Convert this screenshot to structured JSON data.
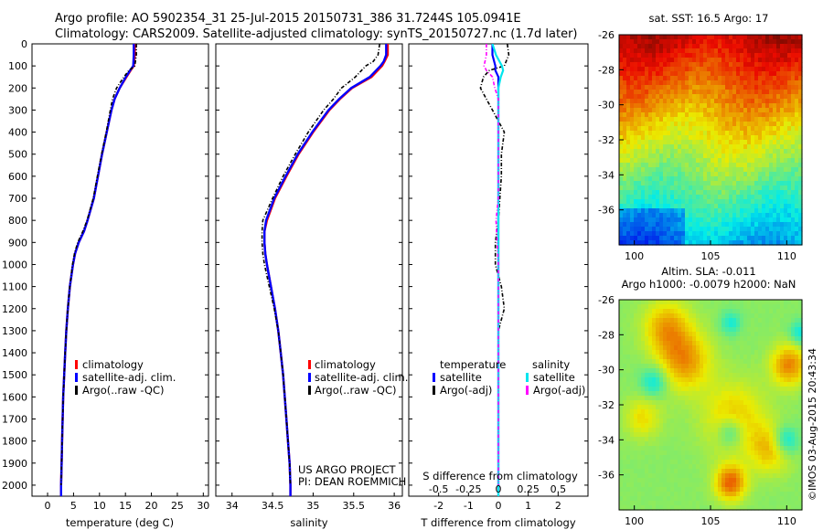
{
  "header": {
    "line1": "Argo profile: AO 5902354_31 25-Jul-2015 20150731_386 31.7244S 105.0941E",
    "line2": "Climatology: CARS2009. Satellite-adjusted climatology: synTS_20150727.nc (1.7d later)"
  },
  "colors": {
    "climatology": "#ff0000",
    "satellite_adj": "#0000ff",
    "argo_raw": "#000000",
    "salinity_satellite": "#00e5ee",
    "salinity_argo": "#ff00ff"
  },
  "chart_data": [
    {
      "id": "temperature",
      "type": "line",
      "xlabel": "temperature (deg C)",
      "ylabel": "",
      "xlim": [
        -3,
        31
      ],
      "ylim": [
        2050,
        0
      ],
      "xticks": [
        "0",
        "5",
        "10",
        "15",
        "20",
        "25",
        "30"
      ],
      "yticks": [
        "0",
        "100",
        "200",
        "300",
        "400",
        "500",
        "600",
        "700",
        "800",
        "900",
        "1000",
        "1100",
        "1200",
        "1300",
        "1400",
        "1500",
        "1600",
        "1700",
        "1800",
        "1900",
        "2000"
      ],
      "legend": [
        "climatology",
        "satellite-adj. clim.",
        "Argo(..raw -QC)"
      ],
      "depth": [
        0,
        50,
        100,
        120,
        150,
        200,
        250,
        300,
        400,
        500,
        600,
        700,
        800,
        850,
        900,
        950,
        1000,
        1100,
        1200,
        1300,
        1400,
        1500,
        1600,
        1700,
        1800,
        1900,
        2000,
        2050
      ],
      "series": [
        {
          "name": "climatology",
          "values": [
            16.8,
            16.8,
            16.6,
            16.0,
            15.2,
            13.9,
            12.9,
            12.3,
            11.4,
            10.5,
            9.7,
            8.9,
            7.7,
            7.0,
            6.0,
            5.3,
            4.9,
            4.3,
            3.9,
            3.6,
            3.4,
            3.2,
            3.0,
            2.9,
            2.8,
            2.7,
            2.6,
            2.6
          ]
        },
        {
          "name": "satellite-adj. clim.",
          "values": [
            16.6,
            16.6,
            16.5,
            15.9,
            15.1,
            13.9,
            12.9,
            12.3,
            11.4,
            10.5,
            9.7,
            8.9,
            7.7,
            7.0,
            6.0,
            5.3,
            4.9,
            4.3,
            3.9,
            3.6,
            3.4,
            3.2,
            3.0,
            2.9,
            2.8,
            2.7,
            2.6,
            2.6
          ]
        },
        {
          "name": "Argo(..raw -QC)",
          "values": [
            17.1,
            17.1,
            16.8,
            15.7,
            14.7,
            13.3,
            12.5,
            12.1,
            11.3,
            10.4,
            9.6,
            8.8,
            7.6,
            6.8,
            5.8,
            5.2,
            4.8,
            4.3,
            3.9,
            3.6,
            3.4,
            3.2,
            3.0,
            2.9,
            2.8,
            2.7,
            2.6,
            null
          ]
        }
      ]
    },
    {
      "id": "salinity",
      "type": "line",
      "xlabel": "salinity",
      "xlim": [
        33.8,
        36.1
      ],
      "ylim": [
        2050,
        0
      ],
      "xticks": [
        "34",
        "34.5",
        "35",
        "35.5",
        "36"
      ],
      "legend": [
        "climatology",
        "satellite-adj. clim.",
        "Argo(..raw -QC)"
      ],
      "depth": [
        0,
        50,
        80,
        100,
        150,
        200,
        250,
        300,
        400,
        500,
        600,
        700,
        800,
        850,
        900,
        950,
        1000,
        1100,
        1200,
        1300,
        1400,
        1500,
        1600,
        1700,
        1800,
        1900,
        2000,
        2050
      ],
      "series": [
        {
          "name": "climatology",
          "values": [
            35.92,
            35.92,
            35.88,
            35.85,
            35.72,
            35.48,
            35.33,
            35.2,
            35.0,
            34.82,
            34.67,
            34.53,
            34.43,
            34.4,
            34.4,
            34.41,
            34.43,
            34.48,
            34.53,
            34.57,
            34.6,
            34.63,
            34.65,
            34.67,
            34.69,
            34.71,
            34.72,
            34.72
          ]
        },
        {
          "name": "satellite-adj. clim.",
          "values": [
            35.9,
            35.9,
            35.87,
            35.83,
            35.7,
            35.47,
            35.32,
            35.19,
            34.99,
            34.81,
            34.66,
            34.52,
            34.42,
            34.4,
            34.4,
            34.41,
            34.43,
            34.48,
            34.53,
            34.57,
            34.6,
            34.63,
            34.65,
            34.67,
            34.69,
            34.71,
            34.72,
            34.72
          ]
        },
        {
          "name": "Argo(..raw -QC)",
          "values": [
            35.82,
            35.8,
            35.74,
            35.65,
            35.52,
            35.35,
            35.25,
            35.13,
            34.94,
            34.78,
            34.63,
            34.5,
            34.38,
            34.37,
            34.37,
            34.38,
            34.4,
            34.46,
            34.52,
            34.57,
            34.6,
            34.63,
            34.65,
            34.67,
            34.69,
            34.71,
            34.72,
            null
          ]
        }
      ],
      "annotations": [
        "US ARGO PROJECT",
        "PI: DEAN ROEMMICH"
      ]
    },
    {
      "id": "difference",
      "type": "line",
      "xlabel": "T difference from climatology",
      "top_axis_label": "S difference from climatology",
      "xlim": [
        -3,
        3
      ],
      "ylim": [
        2050,
        0
      ],
      "xticks": [
        "-2",
        "-1",
        "0",
        "1",
        "2"
      ],
      "xticks_salinity": [
        "-0.5",
        "-0.25",
        "0",
        "0.25",
        "0.5"
      ],
      "legend_groups": [
        "temperature",
        "salinity"
      ],
      "legend": [
        "satellite",
        "Argo(-adj)",
        "satellite",
        "Argo(-adj)"
      ],
      "depth": [
        0,
        50,
        100,
        120,
        150,
        200,
        250,
        300,
        400,
        500,
        600,
        700,
        800,
        900,
        1000,
        1100,
        1200,
        1300,
        1400,
        1500,
        1600,
        1700,
        1800,
        1900,
        2000,
        2050
      ],
      "series": [
        {
          "name": "temperature satellite",
          "values": [
            -0.2,
            -0.2,
            -0.1,
            -0.1,
            0,
            0,
            0,
            0,
            0,
            0,
            0,
            0,
            0,
            0,
            0,
            0,
            0,
            0,
            0,
            0,
            0,
            0,
            0,
            0,
            0,
            0
          ]
        },
        {
          "name": "temperature Argo(-adj)",
          "values": [
            0.3,
            0.35,
            0.2,
            -0.3,
            -0.5,
            -0.6,
            -0.4,
            -0.2,
            0.2,
            0.1,
            0.1,
            0.05,
            0,
            -0.1,
            -0.1,
            0.1,
            0.2,
            0,
            0,
            0,
            0,
            0,
            0,
            0,
            0,
            null
          ]
        },
        {
          "name": "salinity satellite",
          "values": [
            -0.05,
            -0.02,
            0.03,
            0.04,
            0.02,
            0,
            0,
            0,
            0,
            0,
            0,
            0,
            0,
            0,
            0,
            0,
            0,
            0,
            0,
            0,
            0,
            0,
            0,
            0,
            0,
            0
          ]
        },
        {
          "name": "salinity Argo(-adj)",
          "values": [
            -0.1,
            -0.1,
            -0.12,
            -0.1,
            -0.05,
            -0.03,
            0,
            0,
            0,
            0,
            0,
            0,
            -0.02,
            -0.01,
            0,
            0,
            0,
            0,
            0,
            0,
            0,
            0,
            0,
            0,
            0,
            null
          ]
        }
      ]
    },
    {
      "id": "sst_map",
      "type": "heatmap",
      "title": "sat. SST: 16.5 Argo: 17",
      "xlim": [
        99,
        111
      ],
      "ylim": [
        -38,
        -26
      ],
      "xticks": [
        "100",
        "105",
        "110"
      ],
      "yticks": [
        "-26",
        "-28",
        "-30",
        "-32",
        "-34",
        "-36"
      ]
    },
    {
      "id": "sla_map",
      "type": "heatmap",
      "title_line1": "Altim. SLA: -0.011",
      "title_line2": "Argo h1000: -0.0079 h2000: NaN",
      "xlim": [
        99,
        111
      ],
      "ylim": [
        -38,
        -26
      ],
      "xticks": [
        "100",
        "105",
        "110"
      ],
      "yticks": [
        "-26",
        "-28",
        "-30",
        "-32",
        "-34",
        "-36"
      ]
    }
  ],
  "watermark": "©IMOS 03-Aug-2015 20:43:34"
}
